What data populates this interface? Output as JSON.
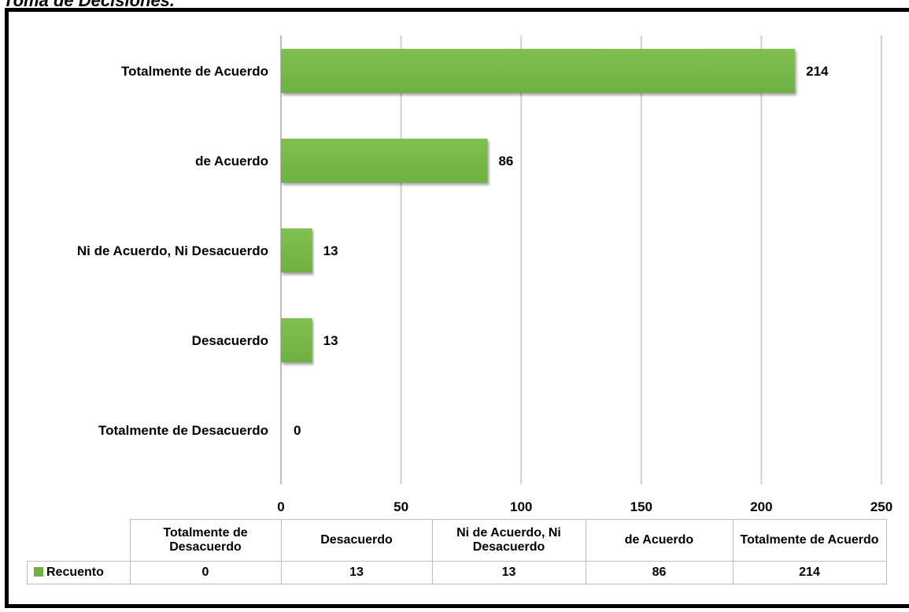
{
  "title": "Toma de Decisiones.",
  "chart_data": {
    "type": "bar",
    "orientation": "horizontal",
    "categories": [
      "Totalmente de Acuerdo",
      "de Acuerdo",
      "Ni de Acuerdo, Ni Desacuerdo",
      "Desacuerdo",
      "Totalmente de Desacuerdo"
    ],
    "series": [
      {
        "name": "Recuento",
        "values": [
          214,
          86,
          13,
          13,
          0
        ],
        "color": "#6fb043"
      }
    ],
    "xlim": [
      0,
      250
    ],
    "xticks": [
      0,
      50,
      100,
      150,
      200,
      250
    ],
    "grid": true,
    "data_labels": true
  },
  "data_table": {
    "headers": [
      "Totalmente de Desacuerdo",
      "Desacuerdo",
      "Ni de Acuerdo, Ni Desacuerdo",
      "de Acuerdo",
      "Totalmente de Acuerdo"
    ],
    "row_label": "Recuento",
    "values": [
      "0",
      "13",
      "13",
      "86",
      "214"
    ]
  }
}
